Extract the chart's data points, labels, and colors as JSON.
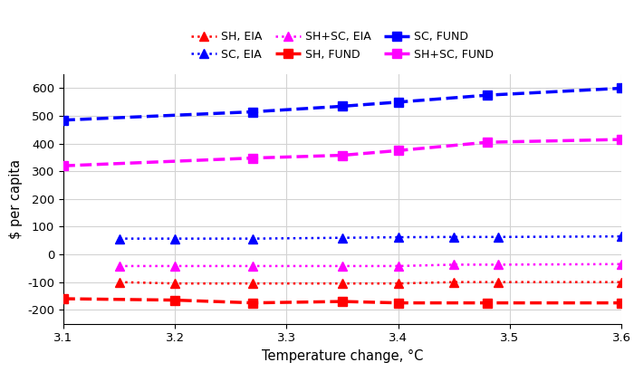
{
  "xlabel": "Temperature change, °C",
  "ylabel": "$ per capita",
  "xlim": [
    3.1,
    3.6
  ],
  "ylim": [
    -250,
    650
  ],
  "yticks": [
    -200,
    -100,
    0,
    100,
    200,
    300,
    400,
    500,
    600
  ],
  "xticks": [
    3.1,
    3.2,
    3.3,
    3.4,
    3.5,
    3.6
  ],
  "SH_EIA_x": [
    3.15,
    3.2,
    3.27,
    3.35,
    3.4,
    3.45,
    3.49,
    3.6
  ],
  "SH_EIA_y": [
    -100,
    -105,
    -105,
    -105,
    -105,
    -100,
    -100,
    -100
  ],
  "SH_FUND_x": [
    3.1,
    3.2,
    3.27,
    3.35,
    3.4,
    3.48,
    3.6
  ],
  "SH_FUND_y": [
    -160,
    -165,
    -175,
    -170,
    -175,
    -175,
    -175
  ],
  "SC_EIA_x": [
    3.15,
    3.2,
    3.27,
    3.35,
    3.4,
    3.45,
    3.49,
    3.6
  ],
  "SC_EIA_y": [
    57,
    57,
    57,
    60,
    62,
    63,
    63,
    65
  ],
  "SC_FUND_x": [
    3.1,
    3.27,
    3.35,
    3.4,
    3.48,
    3.6
  ],
  "SC_FUND_y": [
    485,
    515,
    535,
    550,
    575,
    600
  ],
  "SHSC_EIA_x": [
    3.15,
    3.2,
    3.27,
    3.35,
    3.4,
    3.45,
    3.49,
    3.6
  ],
  "SHSC_EIA_y": [
    -42,
    -42,
    -42,
    -42,
    -42,
    -37,
    -37,
    -35
  ],
  "SHSC_FUND_x": [
    3.1,
    3.27,
    3.35,
    3.4,
    3.48,
    3.6
  ],
  "SHSC_FUND_y": [
    320,
    348,
    358,
    375,
    405,
    415
  ],
  "color_red": "#ff0000",
  "color_blue": "#0000ff",
  "color_magenta": "#ff00ff"
}
